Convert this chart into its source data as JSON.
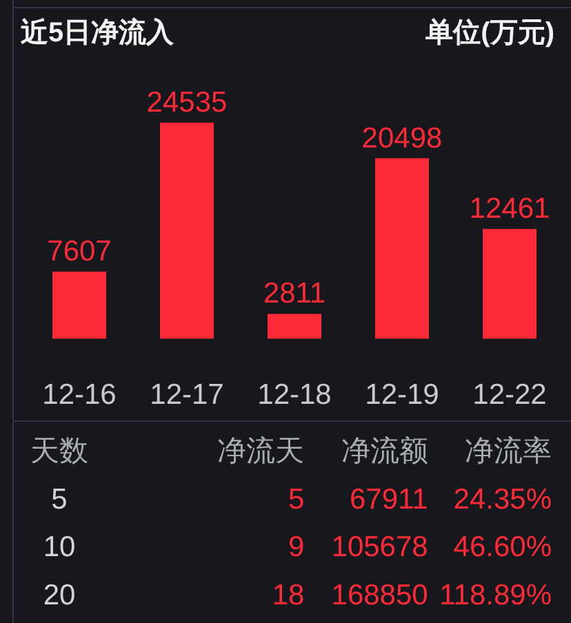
{
  "chart_data": [
    {
      "type": "bar",
      "title": "近5日净流入",
      "annotations": [
        "单位(万元)"
      ],
      "categories": [
        "12-16",
        "12-17",
        "12-18",
        "12-19",
        "12-22"
      ],
      "values": [
        7607,
        24535,
        2811,
        20498,
        12461
      ],
      "color": "#fc2a36",
      "data_labels": true
    },
    {
      "type": "other",
      "ylabel": "天数",
      "categories": [
        "净流天",
        "净流额",
        "净流率"
      ],
      "y_categories": [
        "5",
        "10",
        "20"
      ],
      "cell_labels": [
        [
          "5",
          "67911",
          "24.35%"
        ],
        [
          "9",
          "105678",
          "46.60%"
        ],
        [
          "18",
          "168850",
          "118.89%"
        ]
      ],
      "color": "#fc2a36"
    }
  ]
}
